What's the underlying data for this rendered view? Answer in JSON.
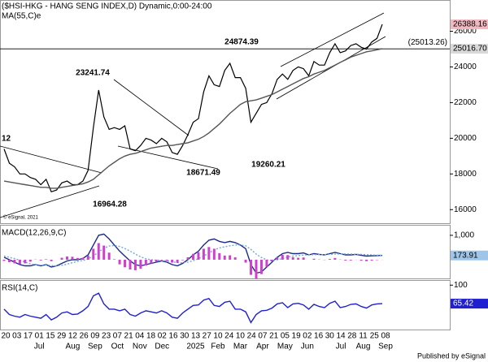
{
  "chart_data": [
    {
      "type": "line",
      "series": [
        {
          "name": "($HSI-HKG - HANG SENG INDEX,D) Dynamic,0:00-24:00",
          "color": "#000000",
          "values": [
            19400,
            18600,
            18400,
            18000,
            18000,
            17800,
            17700,
            17400,
            17700,
            17000,
            17100,
            17500,
            17600,
            17400,
            17400,
            17600,
            18200,
            20600,
            22700,
            21200,
            20500,
            20600,
            20500,
            20700,
            19400,
            19300,
            19600,
            20000,
            19900,
            19700,
            20000,
            19800,
            19200,
            19100,
            19600,
            20200,
            20900,
            21100,
            22600,
            23500,
            23000,
            22900,
            23800,
            24200,
            23400,
            23400,
            22800,
            20900,
            21400,
            21900,
            22000,
            22500,
            23300,
            23600,
            23300,
            23800,
            24000,
            23900,
            23500,
            24300,
            24100,
            24100,
            24800,
            25300,
            24800,
            24900,
            25200,
            25300,
            25100,
            25000,
            25400,
            25600,
            26388.16
          ]
        },
        {
          "name": "MA(55,C)e",
          "color": "#555555",
          "last_label": "25016.70",
          "values": [
            17600,
            17550,
            17500,
            17450,
            17400,
            17350,
            17300,
            17250,
            17250,
            17200,
            17200,
            17250,
            17300,
            17350,
            17400,
            17450,
            17550,
            17700,
            17950,
            18200,
            18450,
            18650,
            18850,
            19000,
            19100,
            19150,
            19250,
            19350,
            19450,
            19500,
            19550,
            19600,
            19600,
            19650,
            19700,
            19750,
            19850,
            19950,
            20100,
            20300,
            20550,
            20800,
            21100,
            21400,
            21650,
            21900,
            22050,
            22100,
            22150,
            22250,
            22350,
            22450,
            22600,
            22750,
            22900,
            23050,
            23200,
            23350,
            23450,
            23600,
            23700,
            23800,
            23950,
            24100,
            24250,
            24400,
            24550,
            24650,
            24750,
            24850,
            24900,
            24960,
            25016.7
          ]
        }
      ],
      "ylim": [
        15330,
        27660
      ],
      "yticks": [
        16000,
        18000,
        20000,
        22000,
        24000,
        26000
      ],
      "hline": {
        "value": 25013.26,
        "label": "(25013.26)"
      },
      "annotations": [
        "12",
        23241.74,
        16964.28,
        24874.39,
        18671.49,
        19260.21
      ]
    },
    {
      "type": "line",
      "title": "MACD(12,26,9,C)",
      "series": [
        {
          "color": "#1a2a8a",
          "values": [
            100,
            0,
            -100,
            -200,
            -250,
            -250,
            -200,
            -250,
            -200,
            -300,
            -250,
            -150,
            -50,
            0,
            0,
            50,
            200,
            600,
            1000,
            1050,
            850,
            600,
            350,
            150,
            -50,
            -200,
            -250,
            -200,
            -150,
            -100,
            -50,
            -100,
            -200,
            -250,
            -150,
            0,
            200,
            350,
            600,
            800,
            850,
            750,
            700,
            750,
            700,
            600,
            450,
            -200,
            -550,
            -500,
            -300,
            -100,
            100,
            250,
            300,
            250,
            250,
            280,
            200,
            250,
            220,
            200,
            250,
            300,
            250,
            200,
            200,
            220,
            180,
            150,
            160,
            170,
            173.91
          ]
        },
        {
          "color": "#6fa8dc",
          "dash": true,
          "values": [
            150,
            100,
            50,
            -20,
            -100,
            -170,
            -210,
            -220,
            -220,
            -240,
            -250,
            -230,
            -180,
            -120,
            -70,
            -30,
            30,
            150,
            320,
            470,
            560,
            580,
            540,
            460,
            350,
            230,
            120,
            40,
            0,
            -20,
            -30,
            -50,
            -80,
            -120,
            -130,
            -100,
            -40,
            40,
            150,
            280,
            400,
            480,
            530,
            570,
            600,
            600,
            570,
            420,
            230,
            90,
            -10,
            -30,
            0,
            50,
            110,
            150,
            170,
            190,
            200,
            210,
            210,
            210,
            220,
            230,
            240,
            235,
            230,
            225,
            220,
            210,
            195,
            185,
            178
          ]
        },
        {
          "color": "#d040d0",
          "kind": "histogram",
          "values": [
            -50,
            -100,
            -150,
            -180,
            -150,
            -80,
            10,
            -30,
            20,
            -60,
            0,
            80,
            130,
            120,
            70,
            80,
            170,
            450,
            680,
            580,
            290,
            20,
            -190,
            -310,
            -400,
            -430,
            -370,
            -240,
            -150,
            -80,
            -20,
            -50,
            -120,
            -130,
            -20,
            100,
            240,
            310,
            450,
            520,
            450,
            270,
            170,
            180,
            100,
            0,
            -120,
            -620,
            -780,
            -590,
            -290,
            -70,
            100,
            200,
            190,
            100,
            80,
            90,
            0,
            40,
            10,
            -10,
            30,
            70,
            10,
            -35,
            -30,
            -5,
            -40,
            -60,
            -35,
            -15,
            -4.09
          ]
        }
      ],
      "ylim": [
        -700,
        1330
      ],
      "yticks": [
        {
          "value": 1000,
          "label": "1,000"
        }
      ]
    },
    {
      "type": "line",
      "title": "RSI(14,C)",
      "series": [
        {
          "color": "#2020d0",
          "values": [
            55,
            45,
            42,
            40,
            45,
            42,
            40,
            38,
            45,
            35,
            40,
            48,
            50,
            45,
            46,
            52,
            60,
            80,
            85,
            65,
            55,
            55,
            52,
            55,
            45,
            42,
            48,
            52,
            50,
            48,
            52,
            48,
            40,
            38,
            48,
            55,
            62,
            63,
            72,
            75,
            62,
            60,
            68,
            70,
            55,
            55,
            50,
            30,
            45,
            52,
            53,
            57,
            65,
            67,
            58,
            65,
            66,
            63,
            55,
            64,
            60,
            58,
            66,
            70,
            58,
            60,
            64,
            65,
            60,
            57,
            63,
            65,
            65.42
          ]
        }
      ],
      "ylim": [
        20,
        105
      ],
      "yticks": [
        100
      ]
    }
  ],
  "x_axis": {
    "day_labels": [
      "20",
      "03",
      "17",
      "01",
      "15",
      "29",
      "12",
      "26",
      "09",
      "23",
      "07",
      "21",
      "04",
      "18",
      "02",
      "16",
      "30",
      "13",
      "27",
      "10",
      "24",
      "10",
      "24",
      "07",
      "21",
      "05",
      "19",
      "02",
      "16",
      "30",
      "14",
      "28",
      "11",
      "25",
      "08"
    ],
    "month_labels": [
      "Jul",
      "Aug",
      "Sep",
      "Oct",
      "Nov",
      "Dec",
      "2025",
      "Feb",
      "Mar",
      "Apr",
      "May",
      "Jun",
      "Jul",
      "Aug",
      "Sep"
    ]
  },
  "watermark": "© eSignal, 2021",
  "footer": "Published by eSignal"
}
